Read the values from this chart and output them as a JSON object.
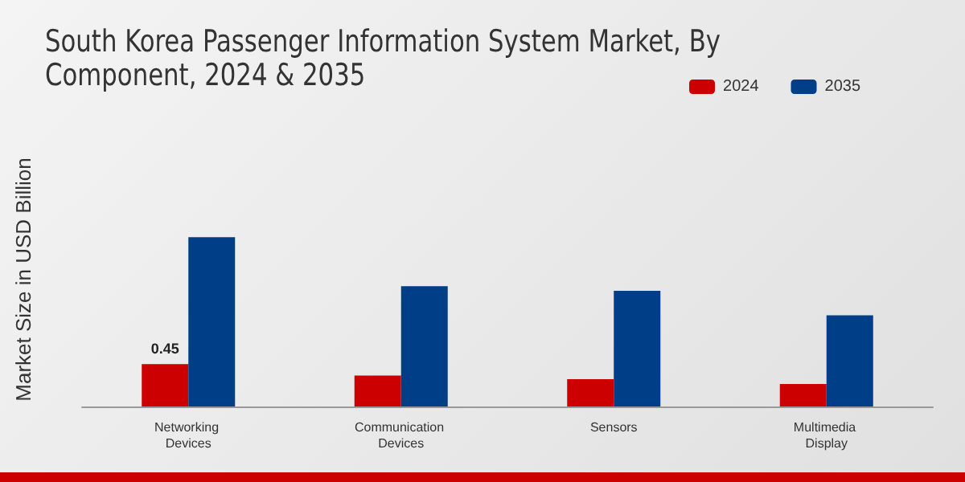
{
  "chart_data": {
    "type": "bar",
    "title": "South Korea Passenger Information System Market, By Component, 2024 & 2035",
    "ylabel": "Market Size in USD Billion",
    "categories": [
      "Networking Devices",
      "Communication Devices",
      "Sensors",
      "Multimedia Display"
    ],
    "series": [
      {
        "name": "2024",
        "color": "#cc0000",
        "values": [
          0.45,
          0.33,
          0.29,
          0.24
        ],
        "value_labels": [
          "0.45",
          null,
          null,
          null
        ]
      },
      {
        "name": "2035",
        "color": "#003f87",
        "values": [
          1.8,
          1.28,
          1.23,
          0.97
        ]
      }
    ],
    "tick_labels": "x",
    "grid": false,
    "legend": "top right"
  }
}
